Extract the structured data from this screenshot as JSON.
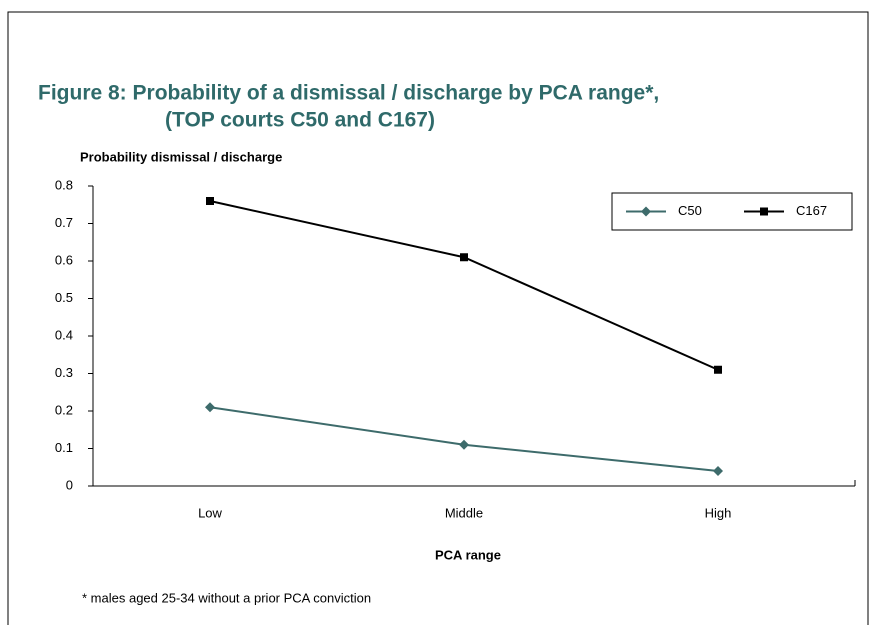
{
  "chart_data": {
    "type": "line",
    "title": [
      "Figure 8:  Probability of a dismissal / discharge by PCA range*,",
      "(TOP courts C50 and C167)"
    ],
    "y_label": "Probability dismissal / discharge",
    "x_label": "PCA range",
    "footnote": "* males aged 25-34 without a prior PCA conviction",
    "categories": [
      "Low",
      "Middle",
      "High"
    ],
    "series": [
      {
        "name": "C50",
        "color": "#3d6b6b",
        "marker": "diamond",
        "values": [
          0.21,
          0.11,
          0.04
        ]
      },
      {
        "name": "C167",
        "color": "#000000",
        "marker": "square",
        "values": [
          0.76,
          0.61,
          0.31
        ]
      }
    ],
    "ylim": [
      0,
      0.8
    ],
    "yticks": [
      0,
      0.1,
      0.2,
      0.3,
      0.4,
      0.5,
      0.6,
      0.7,
      0.8
    ],
    "grid": false,
    "legend": "top-right"
  }
}
